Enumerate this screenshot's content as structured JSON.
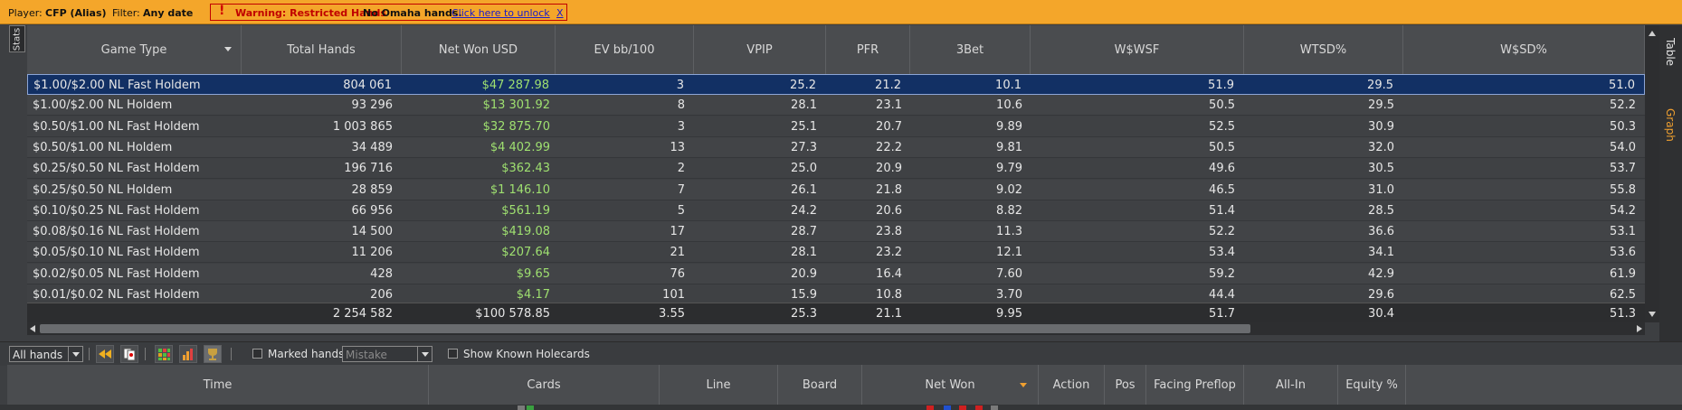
{
  "filter_bar": {
    "player_label": "Player:",
    "player_value": "CFP (Alias)",
    "filter_label": "Filter:",
    "filter_value": "Any date",
    "warning_mark": "!",
    "warning_text": "Warning: Restricted Hands",
    "omaha_text": "No Omaha hands.",
    "unlock_link": "Click here to unlock",
    "close_link": "X"
  },
  "stats_tab_label": "Stats",
  "stats_table": {
    "headers": [
      "Game Type",
      "Total Hands",
      "Net Won USD",
      "EV bb/100",
      "VPIP",
      "PFR",
      "3Bet",
      "W$WSF",
      "WTSD%",
      "W$SD%"
    ],
    "rows": [
      [
        "$1.00/$2.00 NL Fast Holdem",
        "804 061",
        "$47 287.98",
        "3",
        "25.2",
        "21.2",
        "10.1",
        "51.9",
        "29.5",
        "51.0"
      ],
      [
        "$1.00/$2.00 NL Holdem",
        "93 296",
        "$13 301.92",
        "8",
        "28.1",
        "23.1",
        "10.6",
        "50.5",
        "29.5",
        "52.2"
      ],
      [
        "$0.50/$1.00 NL Fast Holdem",
        "1 003 865",
        "$32 875.70",
        "3",
        "25.1",
        "20.7",
        "9.89",
        "52.5",
        "30.9",
        "50.3"
      ],
      [
        "$0.50/$1.00 NL Holdem",
        "34 489",
        "$4 402.99",
        "13",
        "27.3",
        "22.2",
        "9.81",
        "50.5",
        "32.0",
        "54.0"
      ],
      [
        "$0.25/$0.50 NL Fast Holdem",
        "196 716",
        "$362.43",
        "2",
        "25.0",
        "20.9",
        "9.79",
        "49.6",
        "30.5",
        "53.7"
      ],
      [
        "$0.25/$0.50 NL Holdem",
        "28 859",
        "$1 146.10",
        "7",
        "26.1",
        "21.8",
        "9.02",
        "46.5",
        "31.0",
        "55.8"
      ],
      [
        "$0.10/$0.25 NL Fast Holdem",
        "66 956",
        "$561.19",
        "5",
        "24.2",
        "20.6",
        "8.82",
        "51.4",
        "28.5",
        "54.2"
      ],
      [
        "$0.08/$0.16 NL Fast Holdem",
        "14 500",
        "$419.08",
        "17",
        "28.7",
        "23.8",
        "11.3",
        "52.2",
        "36.6",
        "53.1"
      ],
      [
        "$0.05/$0.10 NL Fast Holdem",
        "11 206",
        "$207.64",
        "21",
        "28.1",
        "23.2",
        "12.1",
        "53.4",
        "34.1",
        "53.6"
      ],
      [
        "$0.02/$0.05 NL Fast Holdem",
        "428",
        "$9.65",
        "76",
        "20.9",
        "16.4",
        "7.60",
        "59.2",
        "42.9",
        "61.9"
      ],
      [
        "$0.01/$0.02 NL Fast Holdem",
        "206",
        "$4.17",
        "101",
        "15.9",
        "10.8",
        "3.70",
        "44.4",
        "29.6",
        "62.5"
      ]
    ],
    "totals": [
      "",
      "2 254 582",
      "$100 578.85",
      "3.55",
      "25.3",
      "21.1",
      "9.95",
      "51.7",
      "30.4",
      "51.3"
    ]
  },
  "side_tabs": {
    "table": "Table",
    "graph": "Graph"
  },
  "toolbar": {
    "hands_filter": "All hands",
    "marked_hands_label": "Marked hands",
    "mistake_dropdown": "Mistake",
    "show_known_holecards_label": "Show Known Holecards"
  },
  "hands_table": {
    "headers": [
      "Time",
      "Cards",
      "Line",
      "Board",
      "Net Won",
      "Action",
      "Pos",
      "Facing Preflop",
      "All-In",
      "Equity %"
    ]
  },
  "colors": {
    "filter_bar": "#f4a62a",
    "selected_row": "#123064",
    "positive_money": "#9fe070",
    "warning_red": "#c00000",
    "graph_tab": "#f0a030"
  }
}
